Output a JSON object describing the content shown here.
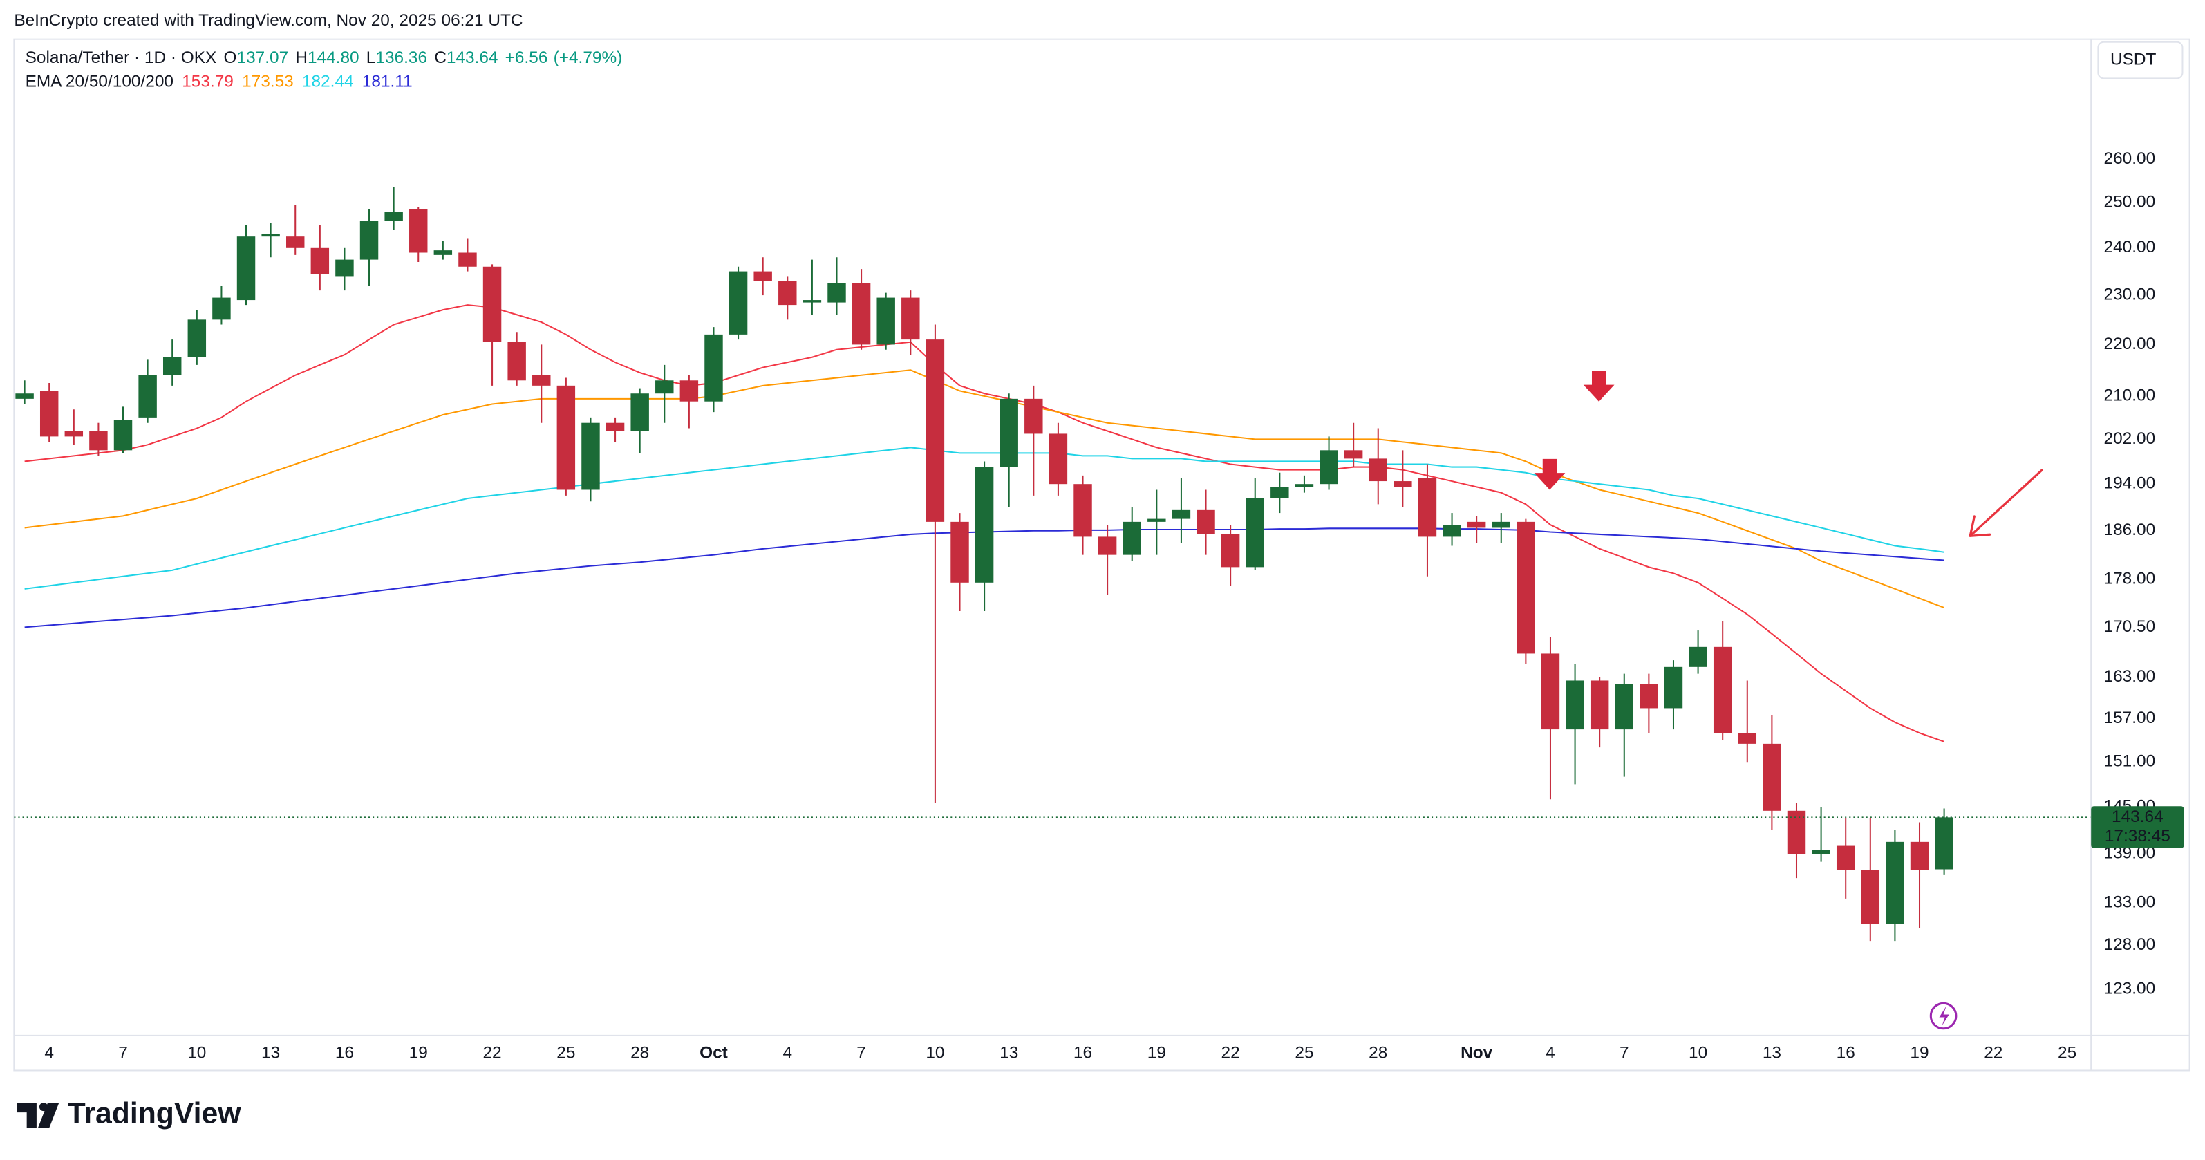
{
  "watermark": "BeInCrypto created with TradingView.com, Nov 20, 2025 06:21 UTC",
  "currency_button": "USDT",
  "branding": "TradingView",
  "chart_data": {
    "type": "candlestick",
    "title": "Solana/Tether · 1D · OKX",
    "legend_ohlc": [
      {
        "label": "O",
        "value": "137.07"
      },
      {
        "label": "H",
        "value": "144.80"
      },
      {
        "label": "L",
        "value": "136.36"
      },
      {
        "label": "C",
        "value": "143.64"
      }
    ],
    "change": "+6.56",
    "change_percent": "(+4.79%)",
    "indicator_label": "EMA 20/50/100/200",
    "countdown": "17:38:45",
    "up_color": "#1b6b37",
    "down_color": "#c62d3e",
    "y_scale": "log",
    "grid": false,
    "x": [
      "2025-09-03",
      "2025-09-04",
      "2025-09-05",
      "2025-09-06",
      "2025-09-07",
      "2025-09-08",
      "2025-09-09",
      "2025-09-10",
      "2025-09-11",
      "2025-09-12",
      "2025-09-13",
      "2025-09-14",
      "2025-09-15",
      "2025-09-16",
      "2025-09-17",
      "2025-09-18",
      "2025-09-19",
      "2025-09-20",
      "2025-09-21",
      "2025-09-22",
      "2025-09-23",
      "2025-09-24",
      "2025-09-25",
      "2025-09-26",
      "2025-09-27",
      "2025-09-28",
      "2025-09-29",
      "2025-09-30",
      "2025-10-01",
      "2025-10-02",
      "2025-10-03",
      "2025-10-04",
      "2025-10-05",
      "2025-10-06",
      "2025-10-07",
      "2025-10-08",
      "2025-10-09",
      "2025-10-10",
      "2025-10-11",
      "2025-10-12",
      "2025-10-13",
      "2025-10-14",
      "2025-10-15",
      "2025-10-16",
      "2025-10-17",
      "2025-10-18",
      "2025-10-19",
      "2025-10-20",
      "2025-10-21",
      "2025-10-22",
      "2025-10-23",
      "2025-10-24",
      "2025-10-25",
      "2025-10-26",
      "2025-10-27",
      "2025-10-28",
      "2025-10-29",
      "2025-10-30",
      "2025-10-31",
      "2025-11-01",
      "2025-11-02",
      "2025-11-03",
      "2025-11-04",
      "2025-11-05",
      "2025-11-06",
      "2025-11-07",
      "2025-11-08",
      "2025-11-09",
      "2025-11-10",
      "2025-11-11",
      "2025-11-12",
      "2025-11-13",
      "2025-11-14",
      "2025-11-15",
      "2025-11-16",
      "2025-11-17",
      "2025-11-18",
      "2025-11-19",
      "2025-11-20"
    ],
    "open": [
      209.5,
      211,
      203.5,
      203.5,
      200,
      206,
      214,
      217.5,
      225,
      229,
      242.5,
      242.5,
      240,
      234,
      237.5,
      246,
      248.5,
      238.5,
      239,
      236,
      220.5,
      214,
      212,
      193,
      205,
      203.5,
      210.5,
      213,
      209,
      222,
      235,
      233,
      228.5,
      228.5,
      232.5,
      220,
      229.5,
      221,
      187.5,
      177.5,
      197,
      209.5,
      203,
      194,
      185,
      182,
      187.5,
      188,
      189.5,
      185.5,
      180,
      191.5,
      193.5,
      194,
      200,
      198.5,
      194.5,
      195,
      185,
      187.5,
      186.5,
      187.5,
      166.5,
      155.5,
      162.5,
      155.5,
      162,
      158.5,
      164.5,
      167.5,
      155,
      153.5,
      144.5,
      139,
      140,
      137,
      130.5,
      140.5,
      137.07
    ],
    "high": [
      213,
      212.5,
      207.5,
      205,
      208,
      217,
      221,
      227,
      232,
      245,
      245.5,
      249.5,
      245,
      240,
      248.5,
      253.5,
      249,
      241.5,
      242,
      236.5,
      222.5,
      220,
      213.5,
      206,
      206,
      211.5,
      216,
      214,
      223.5,
      236,
      238,
      234,
      237.5,
      238,
      235.5,
      230.5,
      231,
      224,
      189,
      198,
      210.5,
      212,
      205,
      195.5,
      187,
      190,
      193,
      195,
      193,
      187,
      195,
      196,
      195.5,
      202.5,
      205,
      204,
      200,
      197.5,
      189,
      188.5,
      189,
      188,
      169,
      165,
      163,
      163.5,
      163.5,
      165.5,
      170,
      171.5,
      162.5,
      157.5,
      145.5,
      145,
      143.5,
      143.5,
      142,
      143,
      144.8
    ],
    "low": [
      208.5,
      201.5,
      201,
      199,
      199.5,
      205,
      212,
      216,
      224,
      228,
      238,
      238.5,
      231,
      231,
      232,
      244,
      237,
      237.5,
      235,
      212,
      212,
      205,
      192,
      191,
      201.5,
      199.5,
      205,
      204,
      207,
      221,
      230,
      225,
      226,
      226,
      219,
      219,
      218,
      145.5,
      173,
      173,
      190,
      192,
      192,
      182,
      175.5,
      181,
      182,
      184,
      182,
      177,
      179.5,
      189,
      192.5,
      193,
      197,
      190.5,
      190,
      178.5,
      183.5,
      184,
      184,
      165,
      146,
      148,
      153,
      149,
      155,
      155.5,
      163.5,
      154,
      151,
      142,
      136,
      138,
      133.5,
      128.5,
      128.5,
      130,
      136.36
    ],
    "close": [
      210.5,
      202.5,
      202.5,
      200,
      205.5,
      214,
      217.5,
      225,
      229.5,
      242.5,
      243,
      240,
      234.5,
      237.5,
      246,
      248,
      239,
      239.5,
      236,
      220.5,
      213,
      212,
      193,
      205,
      203.5,
      210.5,
      213,
      209,
      222,
      235,
      233,
      228,
      229,
      232.5,
      220,
      229.5,
      221,
      187.5,
      177.5,
      197,
      209.5,
      203,
      194,
      185,
      182,
      187.5,
      188,
      189.5,
      185.5,
      180,
      191.5,
      193.5,
      194,
      200,
      198.5,
      194.5,
      193.5,
      185,
      187,
      186.5,
      187.5,
      166.5,
      155.5,
      162.5,
      155.5,
      162,
      158.5,
      164.5,
      167.5,
      155,
      153.5,
      144.5,
      139,
      139.5,
      137,
      130.5,
      140.5,
      137,
      143.64
    ],
    "series": [
      {
        "color": "#f23645",
        "values": [
          198,
          198.5,
          199,
          199.5,
          200,
          201,
          202.5,
          204,
          206,
          209,
          211.5,
          214,
          216,
          218,
          221,
          224,
          225.5,
          227,
          228,
          227.5,
          226,
          224.5,
          222,
          219,
          216.5,
          214.5,
          213,
          212,
          212.5,
          214,
          215.5,
          216.5,
          217.5,
          219,
          219.5,
          220,
          220.5,
          216,
          212,
          210.5,
          209.5,
          208.5,
          207,
          205,
          203.5,
          202,
          200.5,
          199.5,
          198.5,
          197.5,
          197,
          196.5,
          196.5,
          196.5,
          197,
          197,
          196.5,
          195.5,
          194.5,
          193.5,
          192.5,
          190.5,
          187,
          185,
          183,
          181.5,
          180,
          179,
          177.5,
          175,
          172.5,
          169.5,
          166.5,
          163.5,
          161,
          158.5,
          156.5,
          155,
          153.79
        ]
      },
      {
        "color": "#ff9800",
        "values": [
          186.5,
          187,
          187.5,
          188,
          188.5,
          189.5,
          190.5,
          191.5,
          193,
          194.5,
          196,
          197.5,
          199,
          200.5,
          202,
          203.5,
          205,
          206.5,
          207.5,
          208.5,
          209,
          209.5,
          209.5,
          209.5,
          209.5,
          209.5,
          209.5,
          209.5,
          210,
          211,
          212,
          212.5,
          213,
          213.5,
          214,
          214.5,
          215,
          213,
          211,
          210,
          209,
          208,
          207,
          206,
          205,
          204.5,
          204,
          203.5,
          203,
          202.5,
          202,
          202,
          202,
          202,
          202,
          202,
          201.5,
          201,
          200.5,
          200,
          199.5,
          198,
          196,
          194.5,
          193,
          192,
          191,
          190,
          189,
          187.5,
          186,
          184.5,
          183,
          181,
          179.5,
          178,
          176.5,
          175,
          173.53
        ]
      },
      {
        "color": "#1fd3e6",
        "values": [
          176.5,
          177,
          177.5,
          178,
          178.5,
          179,
          179.5,
          180.5,
          181.5,
          182.5,
          183.5,
          184.5,
          185.5,
          186.5,
          187.5,
          188.5,
          189.5,
          190.5,
          191.5,
          192,
          192.5,
          193,
          193.5,
          194,
          194.5,
          195,
          195.5,
          196,
          196.5,
          197,
          197.5,
          198,
          198.5,
          199,
          199.5,
          200,
          200.5,
          200,
          199.5,
          199.5,
          199.5,
          199.5,
          199.5,
          199,
          199,
          198.5,
          198.5,
          198.5,
          198,
          198,
          198,
          198,
          198,
          198,
          198,
          197.5,
          197.5,
          197.5,
          197,
          197,
          196.5,
          196,
          195,
          194.5,
          194,
          193.5,
          193,
          192,
          191.5,
          190.5,
          189.5,
          188.5,
          187.5,
          186.5,
          185.5,
          184.5,
          183.5,
          183,
          182.44
        ]
      },
      {
        "color": "#2b2bd6",
        "values": [
          170.5,
          170.8,
          171.1,
          171.4,
          171.7,
          172,
          172.3,
          172.7,
          173.1,
          173.5,
          174,
          174.5,
          175,
          175.5,
          176,
          176.5,
          177,
          177.5,
          178,
          178.5,
          179,
          179.4,
          179.8,
          180.2,
          180.5,
          180.8,
          181.2,
          181.6,
          182,
          182.5,
          183,
          183.4,
          183.8,
          184.2,
          184.6,
          185,
          185.4,
          185.6,
          185.7,
          185.8,
          185.9,
          186,
          186,
          186.1,
          186.1,
          186.2,
          186.2,
          186.2,
          186.2,
          186.2,
          186.2,
          186.3,
          186.3,
          186.4,
          186.4,
          186.4,
          186.4,
          186.4,
          186.3,
          186.3,
          186.2,
          186.1,
          185.8,
          185.6,
          185.4,
          185.2,
          185,
          184.8,
          184.6,
          184.2,
          183.8,
          183.4,
          183,
          182.6,
          182.3,
          182,
          181.7,
          181.4,
          181.11
        ]
      }
    ],
    "xlim": [
      "2025-09-02",
      "2025-11-26"
    ],
    "xticks": [
      {
        "value": "2025-09-04",
        "label": "4"
      },
      {
        "value": "2025-09-07",
        "label": "7"
      },
      {
        "value": "2025-09-10",
        "label": "10"
      },
      {
        "value": "2025-09-13",
        "label": "13"
      },
      {
        "value": "2025-09-16",
        "label": "16"
      },
      {
        "value": "2025-09-19",
        "label": "19"
      },
      {
        "value": "2025-09-22",
        "label": "22"
      },
      {
        "value": "2025-09-25",
        "label": "25"
      },
      {
        "value": "2025-09-28",
        "label": "28"
      },
      {
        "value": "2025-10-01",
        "label": "Oct"
      },
      {
        "value": "2025-10-04",
        "label": "4"
      },
      {
        "value": "2025-10-07",
        "label": "7"
      },
      {
        "value": "2025-10-10",
        "label": "10"
      },
      {
        "value": "2025-10-13",
        "label": "13"
      },
      {
        "value": "2025-10-16",
        "label": "16"
      },
      {
        "value": "2025-10-19",
        "label": "19"
      },
      {
        "value": "2025-10-22",
        "label": "22"
      },
      {
        "value": "2025-10-25",
        "label": "25"
      },
      {
        "value": "2025-10-28",
        "label": "28"
      },
      {
        "value": "2025-11-01",
        "label": "Nov"
      },
      {
        "value": "2025-11-04",
        "label": "4"
      },
      {
        "value": "2025-11-07",
        "label": "7"
      },
      {
        "value": "2025-11-10",
        "label": "10"
      },
      {
        "value": "2025-11-13",
        "label": "13"
      },
      {
        "value": "2025-11-16",
        "label": "16"
      },
      {
        "value": "2025-11-19",
        "label": "19"
      },
      {
        "value": "2025-11-22",
        "label": "22"
      },
      {
        "value": "2025-11-25",
        "label": "25"
      }
    ],
    "ylim": [
      118,
      289
    ],
    "yticks": [
      {
        "value": 260,
        "label": "260.00"
      },
      {
        "value": 250,
        "label": "250.00"
      },
      {
        "value": 240,
        "label": "240.00"
      },
      {
        "value": 230,
        "label": "230.00"
      },
      {
        "value": 220,
        "label": "220.00"
      },
      {
        "value": 210,
        "label": "210.00"
      },
      {
        "value": 202,
        "label": "202.00"
      },
      {
        "value": 194,
        "label": "194.00"
      },
      {
        "value": 186,
        "label": "186.00"
      },
      {
        "value": 178,
        "label": "178.00"
      },
      {
        "value": 170.5,
        "label": "170.50"
      },
      {
        "value": 163,
        "label": "163.00"
      },
      {
        "value": 157,
        "label": "157.00"
      },
      {
        "value": 151,
        "label": "151.00"
      },
      {
        "value": 145,
        "label": "145.00"
      },
      {
        "value": 139,
        "label": "139.00"
      },
      {
        "value": 133,
        "label": "133.00"
      },
      {
        "value": 128,
        "label": "128.00"
      },
      {
        "value": 123,
        "label": "123.00"
      }
    ]
  }
}
